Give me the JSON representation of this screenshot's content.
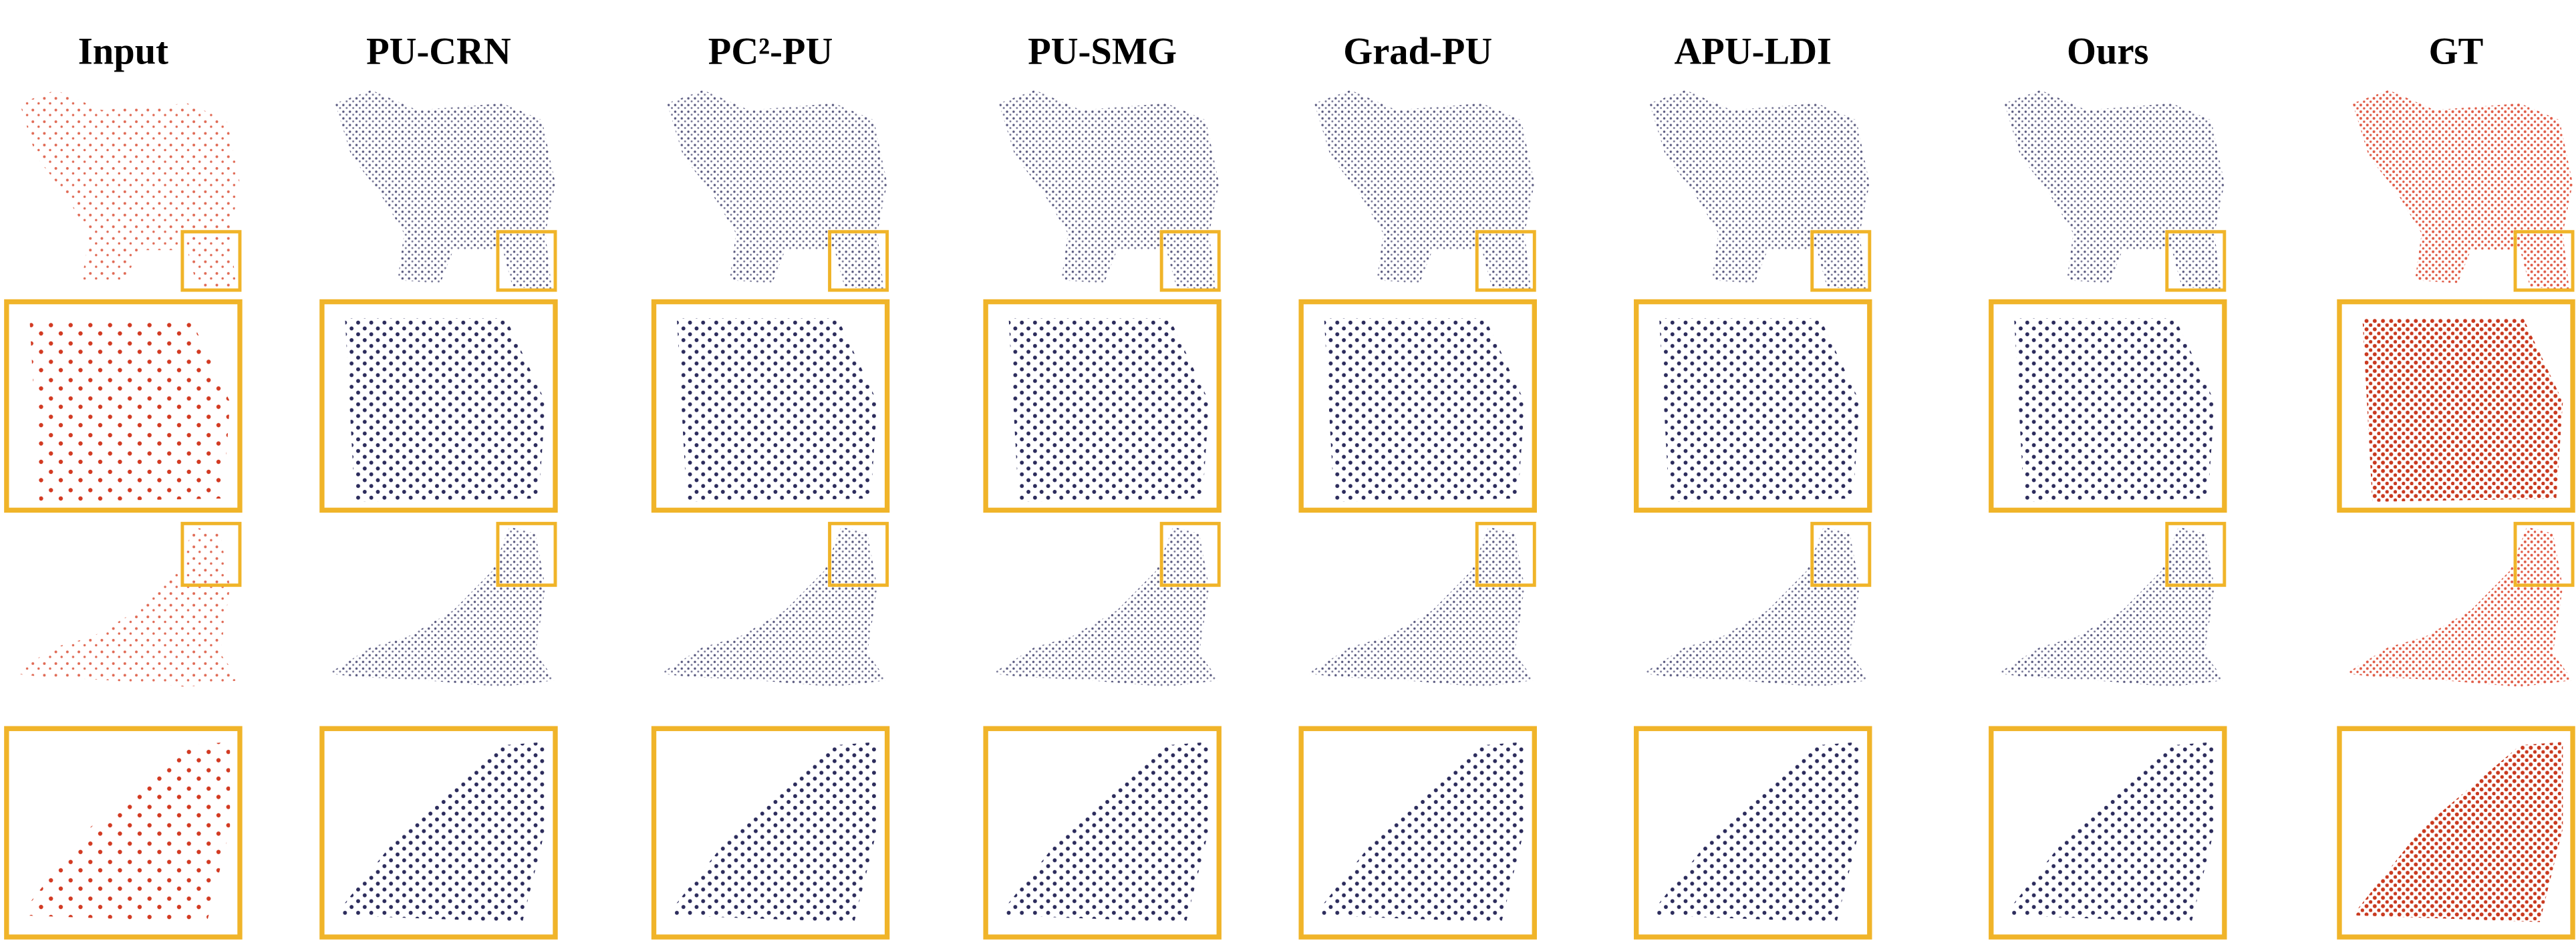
{
  "columns": [
    "Input",
    "PU-CRN",
    "PC²-PU",
    "PU-SMG",
    "Grad-PU",
    "APU-LDI",
    "Ours",
    "GT"
  ]
}
